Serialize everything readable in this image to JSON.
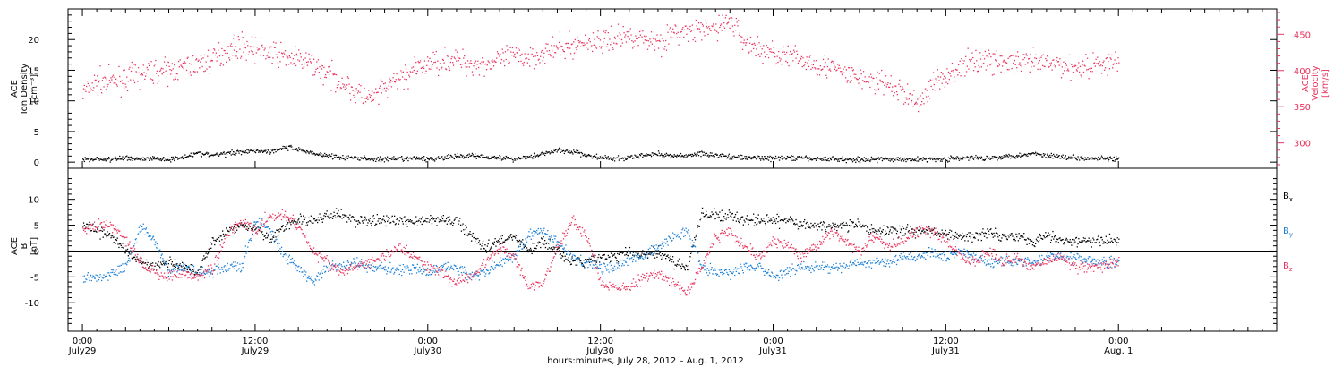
{
  "colors": {
    "black": "#000000",
    "blue": "#1a7fd6",
    "pink": "#e8345e",
    "frame": "#000000"
  },
  "xaxis": {
    "label": "hours:minutes, July 28, 2012 – Aug. 1, 2012",
    "range_hours": [
      -1.0,
      83.0
    ],
    "ticks": [
      {
        "h": 0,
        "time": "0:00",
        "day": "July29"
      },
      {
        "h": 12,
        "time": "12:00",
        "day": "July29"
      },
      {
        "h": 24,
        "time": "0:00",
        "day": "July30"
      },
      {
        "h": 36,
        "time": "12:00",
        "day": "July30"
      },
      {
        "h": 48,
        "time": "0:00",
        "day": "July31"
      },
      {
        "h": 60,
        "time": "12:00",
        "day": "July31"
      },
      {
        "h": 72,
        "time": "0:00",
        "day": "Aug. 1"
      }
    ]
  },
  "chart_data": [
    {
      "type": "scatter",
      "panel": "top",
      "ylabel_left": [
        "ACE",
        "Ion Density",
        "[cm⁻³]"
      ],
      "ylabel_right": [
        "ACE",
        "Velocity",
        "[km/s]"
      ],
      "ylim_left": [
        -1,
        25
      ],
      "yticks_left": [
        0,
        5,
        10,
        15,
        20
      ],
      "ylim_right": [
        265,
        485
      ],
      "yticks_right": [
        300,
        350,
        400,
        450
      ],
      "series": [
        {
          "axis": "right",
          "color": "pink",
          "x": [
            0,
            1,
            2,
            3,
            4,
            5,
            6,
            7,
            8,
            9,
            10,
            11,
            12,
            13,
            14,
            15,
            16,
            17,
            18,
            19,
            20,
            21,
            22,
            23,
            24,
            25,
            26,
            27,
            28,
            29,
            30,
            31,
            32,
            33,
            34,
            35,
            36,
            37,
            38,
            39,
            40,
            41,
            42,
            43,
            44,
            45,
            46,
            47,
            48,
            49,
            50,
            51,
            52,
            53,
            54,
            55,
            56,
            57,
            58,
            59,
            60,
            61,
            62,
            63,
            64,
            65,
            66,
            67,
            68,
            69,
            70,
            71,
            72
          ],
          "y": [
            370,
            385,
            385,
            390,
            395,
            400,
            400,
            405,
            410,
            415,
            430,
            435,
            430,
            425,
            420,
            415,
            410,
            395,
            385,
            370,
            360,
            375,
            390,
            400,
            410,
            415,
            415,
            410,
            410,
            415,
            420,
            420,
            425,
            430,
            435,
            440,
            440,
            445,
            450,
            445,
            440,
            450,
            455,
            455,
            460,
            470,
            440,
            430,
            425,
            420,
            415,
            410,
            405,
            395,
            390,
            385,
            380,
            370,
            355,
            380,
            395,
            405,
            415,
            415,
            412,
            410,
            412,
            410,
            408,
            405,
            408,
            412,
            410
          ]
        },
        {
          "axis": "left",
          "color": "black",
          "x": [
            0,
            1,
            2,
            3,
            4,
            5,
            6,
            7,
            8,
            9,
            10,
            11,
            12,
            13,
            14,
            15,
            16,
            17,
            18,
            19,
            20,
            21,
            22,
            23,
            24,
            25,
            26,
            27,
            28,
            29,
            30,
            31,
            32,
            33,
            34,
            35,
            36,
            37,
            38,
            39,
            40,
            41,
            42,
            43,
            44,
            45,
            46,
            47,
            48,
            49,
            50,
            51,
            52,
            53,
            54,
            55,
            56,
            57,
            58,
            59,
            60,
            61,
            62,
            63,
            64,
            65,
            66,
            67,
            68,
            69,
            70,
            71,
            72
          ],
          "y": [
            0.5,
            0.6,
            0.5,
            0.8,
            0.6,
            0.7,
            0.5,
            1.0,
            1.5,
            1.2,
            1.5,
            1.8,
            2.0,
            1.8,
            2.5,
            2.2,
            1.5,
            1.2,
            0.8,
            0.8,
            0.6,
            0.5,
            0.6,
            0.7,
            0.6,
            0.8,
            1.0,
            1.2,
            1.0,
            0.8,
            0.6,
            1.0,
            1.5,
            2.0,
            1.8,
            1.2,
            0.8,
            0.6,
            0.8,
            1.2,
            1.5,
            1.0,
            1.2,
            1.5,
            1.2,
            1.0,
            0.8,
            0.8,
            0.7,
            0.8,
            0.7,
            0.6,
            0.6,
            0.5,
            0.5,
            0.6,
            0.5,
            0.6,
            0.5,
            0.6,
            0.6,
            0.7,
            0.8,
            0.8,
            1.0,
            1.2,
            1.5,
            1.2,
            1.0,
            0.8,
            0.8,
            0.7,
            0.6
          ]
        }
      ]
    },
    {
      "type": "scatter",
      "panel": "bottom",
      "ylabel_left": [
        "ACE",
        "B",
        "[nT]"
      ],
      "ylim": [
        -15.5,
        16
      ],
      "yticks": [
        -10,
        -5,
        0,
        5,
        10
      ],
      "zero_line": true,
      "legend": [
        "Bx",
        "By",
        "Bz"
      ],
      "series": [
        {
          "name": "Bx",
          "color": "black",
          "x": [
            0,
            1,
            2,
            3,
            4,
            5,
            6,
            7,
            8,
            9,
            10,
            11,
            12,
            13,
            14,
            15,
            16,
            17,
            18,
            19,
            20,
            21,
            22,
            23,
            24,
            25,
            26,
            27,
            28,
            29,
            30,
            31,
            32,
            33,
            34,
            35,
            36,
            37,
            38,
            39,
            40,
            41,
            42,
            43,
            44,
            45,
            46,
            47,
            48,
            49,
            50,
            51,
            52,
            53,
            54,
            55,
            56,
            57,
            58,
            59,
            60,
            61,
            62,
            63,
            64,
            65,
            66,
            67,
            68,
            69,
            70,
            71,
            72
          ],
          "y": [
            5,
            4,
            3,
            0,
            -2,
            -3,
            -2,
            -3,
            -4,
            2,
            4,
            5,
            5,
            2,
            5,
            6,
            6,
            7,
            7,
            6,
            6,
            6,
            6,
            6,
            6,
            6,
            6,
            3,
            1,
            2,
            3,
            0,
            2,
            0,
            -2,
            -2,
            -1,
            -1,
            0,
            -1,
            0,
            -2,
            -3,
            7,
            7,
            7,
            6,
            6,
            6,
            6,
            5,
            5,
            5,
            5,
            5,
            4,
            4,
            4,
            4,
            4,
            3,
            3,
            3,
            4,
            3,
            3,
            2,
            3,
            2,
            2,
            2,
            2,
            2
          ]
        },
        {
          "name": "By",
          "color": "blue",
          "x": [
            0,
            1,
            2,
            3,
            4,
            5,
            6,
            7,
            8,
            9,
            10,
            11,
            12,
            13,
            14,
            15,
            16,
            17,
            18,
            19,
            20,
            21,
            22,
            23,
            24,
            25,
            26,
            27,
            28,
            29,
            30,
            31,
            32,
            33,
            34,
            35,
            36,
            37,
            38,
            39,
            40,
            41,
            42,
            43,
            44,
            45,
            46,
            47,
            48,
            49,
            50,
            51,
            52,
            53,
            54,
            55,
            56,
            57,
            58,
            59,
            60,
            61,
            62,
            63,
            64,
            65,
            66,
            67,
            68,
            69,
            70,
            71,
            72
          ],
          "y": [
            -5,
            -5,
            -4,
            -3,
            5,
            2,
            -4,
            -3,
            -4,
            -4,
            -3,
            -3,
            6,
            4,
            -1,
            -3,
            -6,
            -3,
            -3,
            -2,
            -3,
            -3,
            -4,
            -3,
            -4,
            -3,
            -3,
            -5,
            -4,
            -2,
            -1,
            3,
            4,
            2,
            -1,
            -2,
            -3,
            -3,
            -1,
            -1,
            1,
            3,
            4,
            -3,
            -4,
            -4,
            -3,
            -3,
            -5,
            -4,
            -3,
            -3,
            -3,
            -3,
            -2,
            -2,
            -2,
            -1,
            -1,
            0,
            -1,
            0,
            -1,
            -2,
            -2,
            -2,
            -2,
            -1,
            -1,
            -1,
            -2,
            -2,
            -2
          ]
        },
        {
          "name": "Bz",
          "color": "pink",
          "x": [
            0,
            1,
            2,
            3,
            4,
            5,
            6,
            7,
            8,
            9,
            10,
            11,
            12,
            13,
            14,
            15,
            16,
            17,
            18,
            19,
            20,
            21,
            22,
            23,
            24,
            25,
            26,
            27,
            28,
            29,
            30,
            31,
            32,
            33,
            34,
            35,
            36,
            37,
            38,
            39,
            40,
            41,
            42,
            43,
            44,
            45,
            46,
            47,
            48,
            49,
            50,
            51,
            52,
            53,
            54,
            55,
            56,
            57,
            58,
            59,
            60,
            61,
            62,
            63,
            64,
            65,
            66,
            67,
            68,
            69,
            70,
            71,
            72
          ],
          "y": [
            4,
            5,
            5,
            2,
            -2,
            -4,
            -5,
            -4,
            -5,
            -3,
            3,
            6,
            4,
            7,
            7,
            5,
            0,
            -2,
            -4,
            -3,
            -2,
            -1,
            1,
            -1,
            -3,
            -4,
            -6,
            -5,
            -2,
            1,
            -1,
            -7,
            -6,
            1,
            6,
            3,
            -6,
            -7,
            -7,
            -5,
            -4,
            -6,
            -8,
            -3,
            3,
            4,
            1,
            -1,
            2,
            1,
            -1,
            1,
            4,
            2,
            0,
            3,
            1,
            2,
            4,
            4,
            2,
            -1,
            -2,
            0,
            -2,
            -1,
            -3,
            -2,
            -1,
            -3,
            -3,
            -3,
            -2
          ]
        }
      ]
    }
  ]
}
